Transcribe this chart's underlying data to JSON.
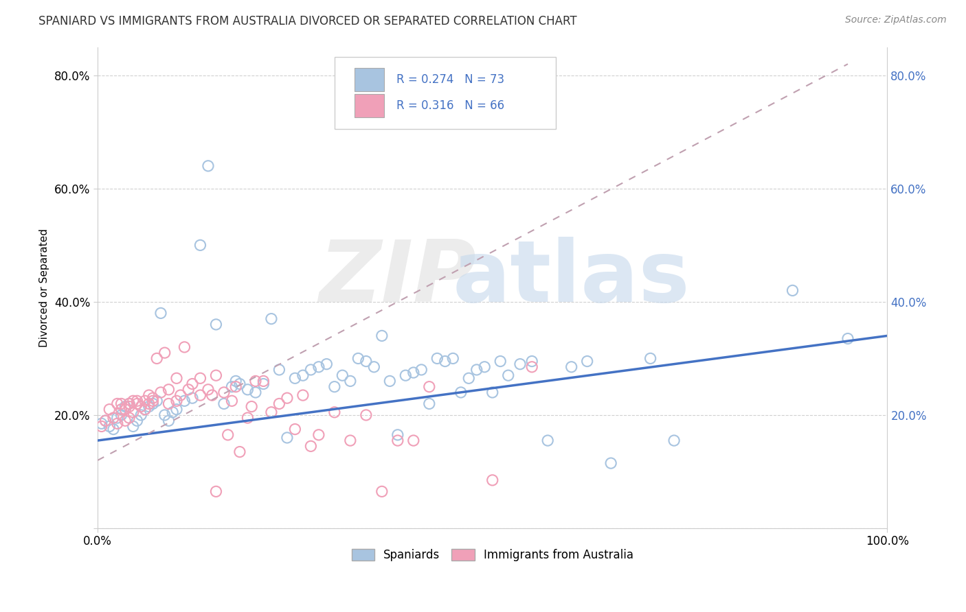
{
  "title": "SPANIARD VS IMMIGRANTS FROM AUSTRALIA DIVORCED OR SEPARATED CORRELATION CHART",
  "source": "Source: ZipAtlas.com",
  "ylabel": "Divorced or Separated",
  "xlim": [
    0.0,
    1.0
  ],
  "ylim": [
    0.0,
    0.85
  ],
  "yticks": [
    0.0,
    0.2,
    0.4,
    0.6,
    0.8
  ],
  "ytick_labels": [
    "",
    "20.0%",
    "40.0%",
    "60.0%",
    "80.0%"
  ],
  "color_blue": "#a8c4e0",
  "color_pink": "#f0a0b8",
  "line_blue": "#4472c4",
  "line_dash_color": "#c0a0b0",
  "title_fontsize": 12,
  "blue_trend_x0": 0.0,
  "blue_trend_y0": 0.155,
  "blue_trend_x1": 1.0,
  "blue_trend_y1": 0.34,
  "pink_trend_x0": 0.0,
  "pink_trend_y0": 0.12,
  "pink_trend_x1": 0.95,
  "pink_trend_y1": 0.82,
  "spaniards_x": [
    0.005,
    0.01,
    0.015,
    0.02,
    0.025,
    0.03,
    0.035,
    0.04,
    0.045,
    0.05,
    0.055,
    0.06,
    0.065,
    0.07,
    0.075,
    0.08,
    0.085,
    0.09,
    0.095,
    0.1,
    0.11,
    0.12,
    0.13,
    0.14,
    0.15,
    0.16,
    0.17,
    0.175,
    0.18,
    0.19,
    0.2,
    0.21,
    0.22,
    0.23,
    0.24,
    0.25,
    0.26,
    0.27,
    0.28,
    0.29,
    0.3,
    0.31,
    0.32,
    0.33,
    0.34,
    0.35,
    0.36,
    0.37,
    0.38,
    0.39,
    0.4,
    0.41,
    0.42,
    0.43,
    0.44,
    0.45,
    0.46,
    0.47,
    0.48,
    0.49,
    0.5,
    0.51,
    0.52,
    0.535,
    0.55,
    0.57,
    0.6,
    0.62,
    0.65,
    0.7,
    0.73,
    0.88,
    0.95
  ],
  "spaniards_y": [
    0.185,
    0.19,
    0.18,
    0.175,
    0.195,
    0.2,
    0.215,
    0.22,
    0.18,
    0.19,
    0.2,
    0.21,
    0.215,
    0.22,
    0.225,
    0.38,
    0.2,
    0.19,
    0.205,
    0.21,
    0.225,
    0.23,
    0.5,
    0.64,
    0.36,
    0.22,
    0.25,
    0.26,
    0.255,
    0.245,
    0.24,
    0.255,
    0.37,
    0.28,
    0.16,
    0.265,
    0.27,
    0.28,
    0.285,
    0.29,
    0.25,
    0.27,
    0.26,
    0.3,
    0.295,
    0.285,
    0.34,
    0.26,
    0.165,
    0.27,
    0.275,
    0.28,
    0.22,
    0.3,
    0.295,
    0.3,
    0.24,
    0.265,
    0.28,
    0.285,
    0.24,
    0.295,
    0.27,
    0.29,
    0.295,
    0.155,
    0.285,
    0.295,
    0.115,
    0.3,
    0.155,
    0.42,
    0.335
  ],
  "immigrants_x": [
    0.005,
    0.01,
    0.015,
    0.02,
    0.025,
    0.025,
    0.03,
    0.03,
    0.035,
    0.035,
    0.04,
    0.04,
    0.04,
    0.045,
    0.045,
    0.05,
    0.05,
    0.055,
    0.06,
    0.06,
    0.065,
    0.065,
    0.07,
    0.07,
    0.075,
    0.08,
    0.085,
    0.09,
    0.09,
    0.1,
    0.1,
    0.105,
    0.11,
    0.115,
    0.12,
    0.13,
    0.13,
    0.14,
    0.145,
    0.15,
    0.15,
    0.16,
    0.165,
    0.17,
    0.175,
    0.18,
    0.19,
    0.195,
    0.2,
    0.21,
    0.22,
    0.23,
    0.24,
    0.25,
    0.26,
    0.27,
    0.28,
    0.3,
    0.32,
    0.34,
    0.36,
    0.38,
    0.4,
    0.42,
    0.5,
    0.55
  ],
  "immigrants_y": [
    0.18,
    0.19,
    0.21,
    0.195,
    0.22,
    0.185,
    0.21,
    0.22,
    0.19,
    0.21,
    0.22,
    0.195,
    0.215,
    0.225,
    0.205,
    0.22,
    0.225,
    0.215,
    0.225,
    0.21,
    0.235,
    0.22,
    0.23,
    0.225,
    0.3,
    0.24,
    0.31,
    0.245,
    0.22,
    0.265,
    0.225,
    0.235,
    0.32,
    0.245,
    0.255,
    0.265,
    0.235,
    0.245,
    0.235,
    0.27,
    0.065,
    0.24,
    0.165,
    0.225,
    0.25,
    0.135,
    0.195,
    0.215,
    0.26,
    0.26,
    0.205,
    0.22,
    0.23,
    0.175,
    0.235,
    0.145,
    0.165,
    0.205,
    0.155,
    0.2,
    0.065,
    0.155,
    0.155,
    0.25,
    0.085,
    0.285
  ]
}
